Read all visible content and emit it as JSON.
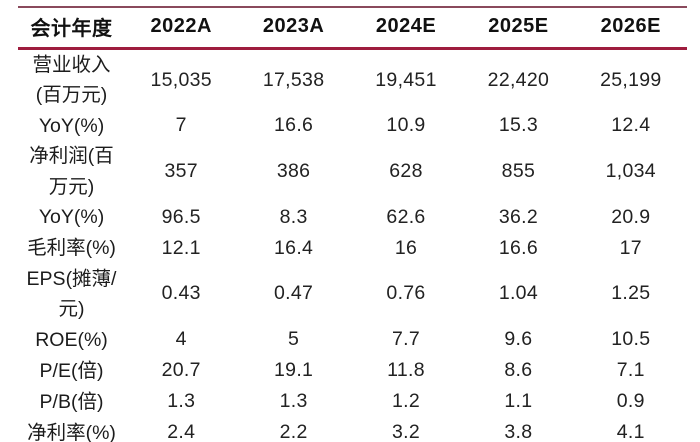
{
  "table": {
    "header": [
      "会计年度",
      "2022A",
      "2023A",
      "2024E",
      "2025E",
      "2026E"
    ],
    "rows": [
      {
        "label": "营业收入(百万元)",
        "values": [
          "15,035",
          "17,538",
          "19,451",
          "22,420",
          "25,199"
        ]
      },
      {
        "label": "YoY(%)",
        "values": [
          "7",
          "16.6",
          "10.9",
          "15.3",
          "12.4"
        ]
      },
      {
        "label": "净利润(百万元)",
        "values": [
          "357",
          "386",
          "628",
          "855",
          "1,034"
        ]
      },
      {
        "label": "YoY(%)",
        "values": [
          "96.5",
          "8.3",
          "62.6",
          "36.2",
          "20.9"
        ]
      },
      {
        "label": "毛利率(%)",
        "values": [
          "12.1",
          "16.4",
          "16",
          "16.6",
          "17"
        ]
      },
      {
        "label": "EPS(摊薄/元)",
        "values": [
          "0.43",
          "0.47",
          "0.76",
          "1.04",
          "1.25"
        ]
      },
      {
        "label": "ROE(%)",
        "values": [
          "4",
          "5",
          "7.7",
          "9.6",
          "10.5"
        ]
      },
      {
        "label": "P/E(倍)",
        "values": [
          "20.7",
          "19.1",
          "11.8",
          "8.6",
          "7.1"
        ]
      },
      {
        "label": "P/B(倍)",
        "values": [
          "1.3",
          "1.3",
          "1.2",
          "1.1",
          "0.9"
        ]
      },
      {
        "label": "净利率(%)",
        "values": [
          "2.4",
          "2.2",
          "3.2",
          "3.8",
          "4.1"
        ]
      }
    ]
  },
  "colors": {
    "top_rule": "#8a4a5c",
    "header_rule": "#9e1c3e",
    "bottom_rule": "#af1f42",
    "text": "#1c1c1c",
    "background": "#ffffff"
  }
}
